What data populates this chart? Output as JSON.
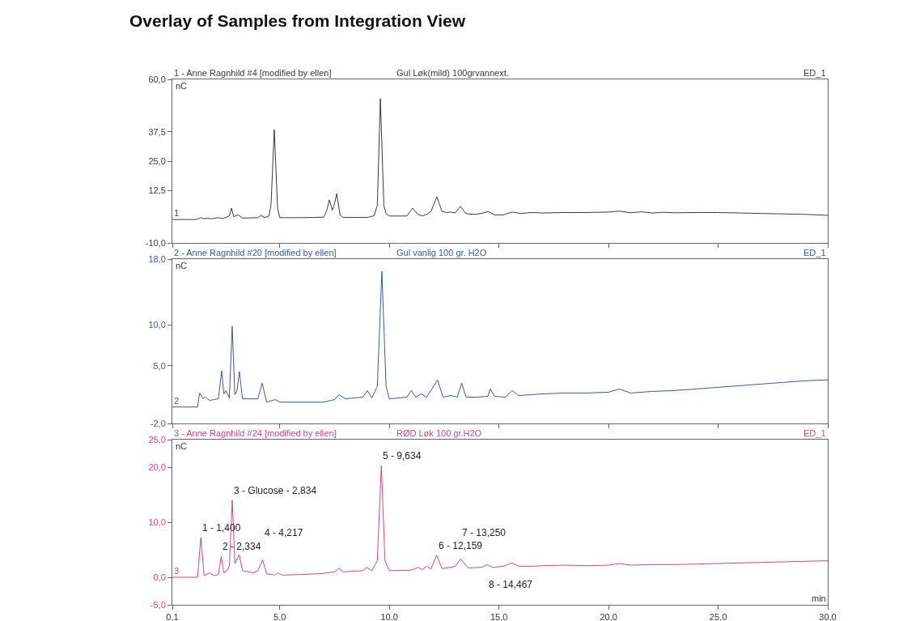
{
  "chart_data": [
    {
      "type": "line",
      "title": "Overlay of Samples from Integration View",
      "subtitle": "1 - Anne Ragnhild #4 [modified by ellen]",
      "ylabel": "nC",
      "annotations": [
        "Gul Løk(mild) 100grvannext.",
        "ED_1",
        {
          "text": "1",
          "x": 0.1,
          "y": 0
        }
      ],
      "x": [
        0.1,
        1.2,
        1.4,
        1.55,
        1.7,
        1.85,
        2.2,
        2.4,
        2.7,
        2.8,
        2.9,
        3.1,
        3.3,
        4.0,
        4.15,
        4.3,
        4.5,
        4.6,
        4.75,
        4.9,
        5.0,
        6.0,
        7.0,
        7.15,
        7.26,
        7.4,
        7.48,
        7.6,
        7.75,
        7.9,
        9.0,
        9.3,
        9.45,
        9.59,
        9.75,
        9.85,
        10.0,
        10.8,
        11.06,
        11.3,
        11.5,
        11.7,
        11.9,
        12.17,
        12.4,
        12.6,
        12.8,
        13.0,
        13.24,
        13.5,
        13.9,
        14.2,
        14.5,
        14.8,
        15.2,
        15.6,
        16.0,
        16.5,
        17.0,
        18,
        19,
        20,
        20.5,
        21,
        21.5,
        22,
        22.5,
        23,
        24,
        25,
        26,
        27,
        28,
        29,
        30
      ],
      "series": [
        {
          "color": "#3a3a3a",
          "values": [
            0,
            0,
            0.8,
            0.3,
            0.6,
            0.3,
            0.8,
            0.4,
            1.5,
            4.9,
            1.2,
            2.0,
            0.6,
            0.8,
            1.8,
            0.8,
            1.5,
            6,
            38.5,
            5,
            0.8,
            0.8,
            1.0,
            4,
            8.4,
            4,
            6,
            11.1,
            2,
            0.9,
            0.9,
            1.6,
            6,
            51.7,
            6,
            2.5,
            1.5,
            1.5,
            4.9,
            2.2,
            1.6,
            2.2,
            3.5,
            9.7,
            3.5,
            3.0,
            3.2,
            2.8,
            5.6,
            2.5,
            2.2,
            2.6,
            3.4,
            2.0,
            2.0,
            3.2,
            2.6,
            3.0,
            2.8,
            3.0,
            3.0,
            3.2,
            3.6,
            2.9,
            3.3,
            2.8,
            3.1,
            2.9,
            3.0,
            3.0,
            2.8,
            2.6,
            2.4,
            2.2,
            1.8
          ]
        }
      ],
      "xlim": [
        0.1,
        30
      ],
      "xticks": [
        {
          "value": 0.1,
          "label": null
        },
        {
          "value": 5,
          "label": null
        },
        {
          "value": 10,
          "label": null
        },
        {
          "value": 15,
          "label": null
        },
        {
          "value": 20,
          "label": null
        },
        {
          "value": 25,
          "label": null
        },
        {
          "value": 30,
          "label": null
        }
      ],
      "ylim": [
        -10,
        60
      ],
      "yticks": [
        {
          "value": -10,
          "label": "-10,0"
        },
        {
          "value": 12.5,
          "label": "12,5"
        },
        {
          "value": 25,
          "label": "25,0"
        },
        {
          "value": 37.5,
          "label": "37,5"
        },
        {
          "value": 60,
          "label": "60,0"
        }
      ],
      "tick_labels": "y"
    },
    {
      "type": "line",
      "title": "2 - Anne Ragnhild #20 [modified by ellen]",
      "ylabel": "nC",
      "annotations": [
        "Gul vanlig 100 gr. H2O",
        "ED_1",
        {
          "text": "2",
          "x": 0.1,
          "y": 0
        }
      ],
      "x": [
        0.1,
        1.25,
        1.3,
        1.35,
        1.5,
        1.6,
        1.8,
        2.0,
        2.2,
        2.35,
        2.45,
        2.55,
        2.7,
        2.83,
        2.95,
        3.05,
        3.16,
        3.3,
        4.0,
        4.2,
        4.4,
        4.8,
        5.0,
        6.0,
        7.0,
        7.5,
        7.7,
        8.0,
        8.8,
        9.0,
        9.2,
        9.45,
        9.66,
        9.85,
        10.0,
        10.8,
        11.0,
        11.2,
        11.45,
        11.7,
        12.2,
        12.45,
        12.8,
        13.1,
        13.3,
        13.5,
        14.0,
        14.5,
        14.6,
        14.8,
        15.3,
        15.6,
        15.9,
        16.5,
        17,
        18,
        19,
        20,
        20.5,
        21,
        22,
        23,
        24,
        25,
        26,
        27,
        28,
        29,
        30
      ],
      "series": [
        {
          "color": "#3858a8",
          "values": [
            0,
            0,
            1.0,
            1.7,
            1.0,
            1.2,
            0.8,
            0.9,
            1.0,
            4.4,
            1.6,
            2.0,
            1.1,
            9.8,
            1.5,
            2.0,
            4.3,
            1.0,
            1.0,
            2.9,
            0.6,
            0.9,
            0.6,
            0.6,
            0.6,
            0.9,
            1.5,
            1.0,
            1.2,
            2.0,
            1.1,
            2.5,
            16.5,
            2.5,
            1.0,
            1.2,
            2.0,
            1.2,
            1.6,
            1.2,
            3.3,
            1.2,
            1.4,
            1.2,
            2.9,
            1.2,
            1.2,
            1.3,
            2.2,
            1.3,
            1.2,
            2.0,
            1.4,
            1.5,
            1.6,
            1.7,
            1.7,
            1.8,
            2.2,
            1.7,
            1.9,
            2.0,
            2.2,
            2.4,
            2.6,
            2.8,
            3.0,
            3.2,
            3.3
          ]
        }
      ],
      "xlim": [
        0.1,
        30
      ],
      "xticks": [
        {
          "value": 0.1,
          "label": null
        },
        {
          "value": 5,
          "label": null
        },
        {
          "value": 10,
          "label": null
        },
        {
          "value": 15,
          "label": null
        },
        {
          "value": 20,
          "label": null
        },
        {
          "value": 25,
          "label": null
        },
        {
          "value": 30,
          "label": null
        }
      ],
      "ylim": [
        -2,
        18
      ],
      "yticks": [
        {
          "value": -2,
          "label": "-2,0"
        },
        {
          "value": 5,
          "label": "5,0"
        },
        {
          "value": 10,
          "label": "10,0"
        },
        {
          "value": 18,
          "label": "18,0"
        }
      ],
      "tick_labels": "y"
    },
    {
      "type": "line",
      "title": "3 - Anne Ragnhild #24 [modified by ellen]",
      "ylabel": "nC",
      "xlabel": "min",
      "annotations": [
        "RØD Løk 100 gr.H2O",
        "ED_1",
        {
          "text": "3",
          "x": 0.1,
          "y": 0
        },
        {
          "text": "1 - 1,400",
          "x": 1.4,
          "y": 7.2
        },
        {
          "text": "2 - 2,334",
          "x": 2.33,
          "y": 3.8
        },
        {
          "text": "3 - Glucose - 2,834",
          "x": 2.834,
          "y": 14.0
        },
        {
          "text": "4 - 4,217",
          "x": 4.217,
          "y": 3.2
        },
        {
          "text": "5 - 9,634",
          "x": 9.634,
          "y": 20.3
        },
        {
          "text": "6 - 12,159",
          "x": 12.159,
          "y": 4.0
        },
        {
          "text": "7 - 13,250",
          "x": 13.25,
          "y": 3.3
        },
        {
          "text": "8 - 14,467",
          "x": 14.467,
          "y": 2.3
        }
      ],
      "x": [
        0.1,
        1.25,
        1.4,
        1.55,
        1.8,
        2.0,
        2.2,
        2.33,
        2.45,
        2.6,
        2.7,
        2.834,
        2.95,
        3.15,
        3.3,
        3.8,
        4.0,
        4.217,
        4.4,
        4.8,
        4.9,
        5.1,
        6,
        7,
        7.5,
        7.7,
        7.9,
        8.8,
        8.95,
        9.2,
        9.45,
        9.634,
        9.8,
        10.0,
        11.0,
        11.3,
        11.5,
        11.7,
        11.9,
        12.159,
        12.4,
        12.8,
        13.0,
        13.25,
        13.6,
        14.2,
        14.467,
        14.7,
        15.2,
        15.6,
        15.9,
        16.5,
        17,
        18,
        19,
        20,
        20.5,
        21,
        22,
        23,
        24,
        25,
        26,
        27,
        28,
        29,
        30
      ],
      "series": [
        {
          "color": "#e0457a",
          "values": [
            0,
            0,
            7.2,
            0.3,
            0.8,
            0.3,
            0.5,
            3.8,
            0.8,
            1.2,
            2.0,
            14.0,
            2.5,
            4.1,
            1.2,
            0.8,
            1.2,
            3.2,
            0.6,
            0.4,
            0.8,
            0.4,
            0.5,
            0.7,
            1.0,
            1.6,
            1.0,
            1.2,
            1.8,
            1.2,
            3,
            20.3,
            3,
            1.2,
            1.3,
            1.8,
            1.4,
            2.0,
            1.5,
            4.0,
            1.6,
            1.8,
            2.0,
            3.3,
            1.7,
            1.8,
            2.3,
            1.8,
            2.0,
            2.6,
            2.0,
            2.0,
            2.1,
            2.2,
            2.1,
            2.2,
            2.5,
            2.2,
            2.3,
            2.3,
            2.4,
            2.5,
            2.6,
            2.7,
            2.8,
            2.9,
            3.0
          ]
        }
      ],
      "xlim": [
        0.1,
        30
      ],
      "xticks": [
        {
          "value": 0.1,
          "label": "0,1"
        },
        {
          "value": 5,
          "label": "5,0"
        },
        {
          "value": 10,
          "label": "10,0"
        },
        {
          "value": 15,
          "label": "15,0"
        },
        {
          "value": 20,
          "label": "20,0"
        },
        {
          "value": 25,
          "label": "25,0"
        },
        {
          "value": 30,
          "label": "30,0"
        }
      ],
      "ylim": [
        -5,
        25
      ],
      "yticks": [
        {
          "value": -5,
          "label": "-5,0"
        },
        {
          "value": 0,
          "label": "0,0"
        },
        {
          "value": 10,
          "label": "10,0"
        },
        {
          "value": 20,
          "label": "20,0"
        },
        {
          "value": 25,
          "label": "25,0"
        }
      ]
    }
  ]
}
